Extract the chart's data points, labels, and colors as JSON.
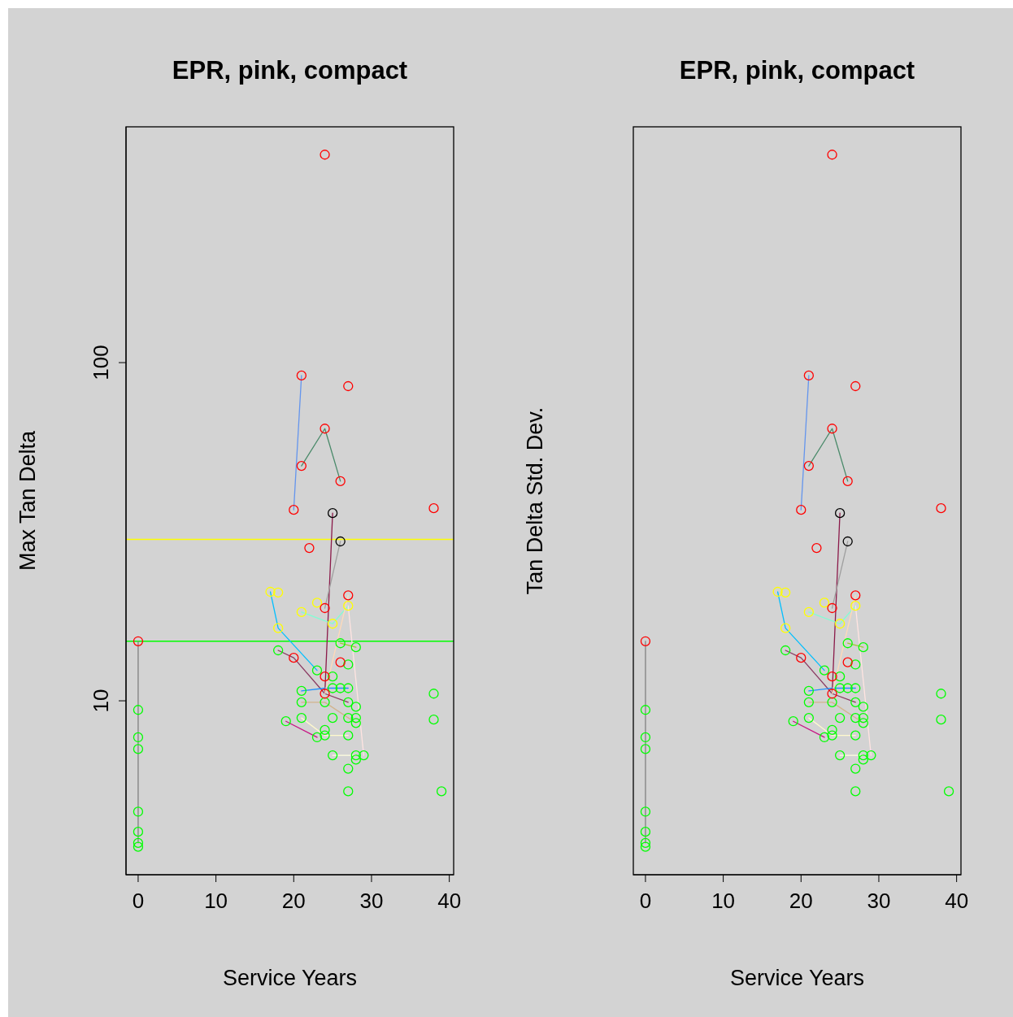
{
  "chart_data": [
    {
      "type": "scatter",
      "title": "EPR, pink, compact",
      "xlabel": "Service Years",
      "ylabel": "Max Tan Delta",
      "log": "y",
      "xlim": [
        -1.56,
        40.56
      ],
      "xticks": [
        0,
        10,
        20,
        30,
        40
      ],
      "ylim": [
        3.06,
        498
      ],
      "yticks": [
        10,
        100
      ],
      "marker": "circle",
      "ref_lines": [
        {
          "axis": "y",
          "value": 30,
          "color": "#ffff00"
        },
        {
          "axis": "y",
          "value": 15,
          "color": "#00ff00"
        }
      ],
      "series": [
        {
          "type": "line",
          "marker": "none",
          "color": "#808080",
          "x": [
            0,
            0
          ],
          "values": [
            15.0,
            3.8
          ]
        },
        {
          "type": "line",
          "marker": "none",
          "color": "#6495ed",
          "x": [
            20,
            21
          ],
          "values": [
            36.7,
            91.6
          ]
        },
        {
          "type": "line",
          "marker": "none",
          "color": "#4a8a6a",
          "x": [
            21,
            24,
            26
          ],
          "values": [
            49.5,
            63.8,
            44.6
          ]
        },
        {
          "type": "line",
          "marker": "none",
          "color": "#8b1a4a",
          "x": [
            25,
            24
          ],
          "values": [
            35.9,
            10.5
          ]
        },
        {
          "type": "line",
          "marker": "none",
          "color": "#a0a0a0",
          "x": [
            26,
            24
          ],
          "values": [
            29.6,
            18.8
          ]
        },
        {
          "type": "line",
          "marker": "none",
          "color": "#00bfff",
          "x": [
            17,
            18,
            23
          ],
          "values": [
            21.0,
            16.4,
            12.3
          ]
        },
        {
          "type": "line",
          "marker": "none",
          "color": "#7fffd4",
          "x": [
            21,
            25,
            27
          ],
          "values": [
            18.3,
            16.9,
            19.1
          ]
        },
        {
          "type": "line",
          "marker": "none",
          "color": "#8b3a62",
          "x": [
            18,
            20,
            24,
            27
          ],
          "values": [
            14.1,
            13.4,
            10.5,
            9.9
          ]
        },
        {
          "type": "line",
          "marker": "none",
          "color": "#1e90ff",
          "x": [
            21,
            24,
            27
          ],
          "values": [
            10.7,
            10.9,
            10.9
          ]
        },
        {
          "type": "line",
          "marker": "none",
          "color": "#d2b48c",
          "x": [
            21,
            24,
            28
          ],
          "values": [
            9.9,
            9.9,
            8.6
          ]
        },
        {
          "type": "line",
          "marker": "none",
          "color": "#c71585",
          "x": [
            19,
            23
          ],
          "values": [
            8.7,
            7.8
          ]
        },
        {
          "type": "line",
          "marker": "none",
          "color": "#fffacd",
          "x": [
            21,
            24,
            27
          ],
          "values": [
            8.9,
            7.9,
            7.9
          ]
        },
        {
          "type": "line",
          "marker": "none",
          "color": "#ffffe0",
          "x": [
            25,
            28
          ],
          "values": [
            6.9,
            6.9
          ]
        },
        {
          "type": "line",
          "marker": "none",
          "color": "#ffe4e1",
          "x": [
            27,
            29
          ],
          "values": [
            19.1,
            6.9
          ]
        },
        {
          "type": "line",
          "marker": "none",
          "color": "#ffdab9",
          "x": [
            27,
            24
          ],
          "values": [
            20.5,
            10.5
          ]
        },
        {
          "type": "line",
          "marker": "none",
          "color": "#9acd32",
          "x": [
            26,
            28
          ],
          "values": [
            14.8,
            14.4
          ]
        },
        {
          "type": "scatter",
          "color": "#00ff00",
          "x": [
            0,
            0,
            0,
            0,
            0,
            0,
            0,
            26,
            28,
            18,
            27,
            23,
            25,
            21,
            25,
            26,
            27,
            21,
            24,
            27,
            28,
            21,
            25,
            27,
            28,
            28,
            19,
            24,
            23,
            24,
            27,
            25,
            28,
            29,
            28,
            27,
            27,
            38,
            38,
            39
          ],
          "values": [
            9.4,
            7.8,
            7.2,
            4.7,
            4.1,
            3.8,
            3.7,
            14.8,
            14.4,
            14.1,
            12.8,
            12.3,
            11.8,
            10.7,
            10.9,
            10.9,
            10.9,
            9.9,
            9.9,
            9.9,
            9.6,
            8.9,
            8.9,
            8.9,
            8.9,
            8.6,
            8.7,
            8.2,
            7.8,
            7.9,
            7.9,
            6.9,
            6.9,
            6.9,
            6.7,
            6.3,
            5.4,
            10.5,
            8.8,
            5.4
          ]
        },
        {
          "type": "scatter",
          "color": "#ffff00",
          "x": [
            17,
            18,
            23,
            21,
            27,
            25,
            18
          ],
          "values": [
            21.0,
            20.9,
            19.5,
            18.3,
            19.1,
            16.9,
            16.4
          ]
        },
        {
          "type": "scatter",
          "color": "#ff0000",
          "x": [
            0,
            24,
            21,
            27,
            24,
            21,
            26,
            20,
            38,
            22,
            27,
            24,
            20,
            26,
            24,
            24
          ],
          "values": [
            15.0,
            412,
            91.6,
            85.2,
            63.8,
            49.5,
            44.6,
            36.7,
            37.1,
            28.3,
            20.5,
            18.8,
            13.4,
            13.0,
            11.8,
            10.5
          ]
        },
        {
          "type": "scatter",
          "color": "#000000",
          "x": [
            25,
            26
          ],
          "values": [
            35.9,
            29.6
          ]
        }
      ]
    },
    {
      "type": "scatter",
      "title": "EPR, pink, compact",
      "xlabel": "Service Years",
      "ylabel": "Tan Delta Std. Dev.",
      "log": "y",
      "xlim": [
        -1.56,
        40.56
      ],
      "xticks": [
        0,
        10,
        20,
        30,
        40
      ],
      "ylim": [
        3.06,
        498
      ],
      "tick_labels": "x",
      "marker": "circle",
      "series": [
        {
          "type": "line",
          "marker": "none",
          "color": "#808080",
          "x": [
            0,
            0
          ],
          "values": [
            15.0,
            3.8
          ]
        },
        {
          "type": "line",
          "marker": "none",
          "color": "#6495ed",
          "x": [
            20,
            21
          ],
          "values": [
            36.7,
            91.6
          ]
        },
        {
          "type": "line",
          "marker": "none",
          "color": "#4a8a6a",
          "x": [
            21,
            24,
            26
          ],
          "values": [
            49.5,
            63.8,
            44.6
          ]
        },
        {
          "type": "line",
          "marker": "none",
          "color": "#8b1a4a",
          "x": [
            25,
            24
          ],
          "values": [
            35.9,
            10.5
          ]
        },
        {
          "type": "line",
          "marker": "none",
          "color": "#a0a0a0",
          "x": [
            26,
            24
          ],
          "values": [
            29.6,
            18.8
          ]
        },
        {
          "type": "line",
          "marker": "none",
          "color": "#00bfff",
          "x": [
            17,
            18,
            23
          ],
          "values": [
            21.0,
            16.4,
            12.3
          ]
        },
        {
          "type": "line",
          "marker": "none",
          "color": "#7fffd4",
          "x": [
            21,
            25,
            27
          ],
          "values": [
            18.3,
            16.9,
            19.1
          ]
        },
        {
          "type": "line",
          "marker": "none",
          "color": "#8b3a62",
          "x": [
            18,
            20,
            24,
            27
          ],
          "values": [
            14.1,
            13.4,
            10.5,
            9.9
          ]
        },
        {
          "type": "line",
          "marker": "none",
          "color": "#1e90ff",
          "x": [
            21,
            24,
            27
          ],
          "values": [
            10.7,
            10.9,
            10.9
          ]
        },
        {
          "type": "line",
          "marker": "none",
          "color": "#d2b48c",
          "x": [
            21,
            24,
            28
          ],
          "values": [
            9.9,
            9.9,
            8.6
          ]
        },
        {
          "type": "line",
          "marker": "none",
          "color": "#c71585",
          "x": [
            19,
            23
          ],
          "values": [
            8.7,
            7.8
          ]
        },
        {
          "type": "line",
          "marker": "none",
          "color": "#fffacd",
          "x": [
            21,
            24,
            27
          ],
          "values": [
            8.9,
            7.9,
            7.9
          ]
        },
        {
          "type": "line",
          "marker": "none",
          "color": "#ffffe0",
          "x": [
            25,
            28
          ],
          "values": [
            6.9,
            6.9
          ]
        },
        {
          "type": "line",
          "marker": "none",
          "color": "#ffe4e1",
          "x": [
            27,
            29
          ],
          "values": [
            19.1,
            6.9
          ]
        },
        {
          "type": "line",
          "marker": "none",
          "color": "#ffdab9",
          "x": [
            27,
            24
          ],
          "values": [
            20.5,
            10.5
          ]
        },
        {
          "type": "line",
          "marker": "none",
          "color": "#9acd32",
          "x": [
            26,
            28
          ],
          "values": [
            14.8,
            14.4
          ]
        },
        {
          "type": "scatter",
          "color": "#00ff00",
          "x": [
            0,
            0,
            0,
            0,
            0,
            0,
            0,
            26,
            28,
            18,
            27,
            23,
            25,
            21,
            25,
            26,
            27,
            21,
            24,
            27,
            28,
            21,
            25,
            27,
            28,
            28,
            19,
            24,
            23,
            24,
            27,
            25,
            28,
            29,
            28,
            27,
            27,
            38,
            38,
            39
          ],
          "values": [
            9.4,
            7.8,
            7.2,
            4.7,
            4.1,
            3.8,
            3.7,
            14.8,
            14.4,
            14.1,
            12.8,
            12.3,
            11.8,
            10.7,
            10.9,
            10.9,
            10.9,
            9.9,
            9.9,
            9.9,
            9.6,
            8.9,
            8.9,
            8.9,
            8.9,
            8.6,
            8.7,
            8.2,
            7.8,
            7.9,
            7.9,
            6.9,
            6.9,
            6.9,
            6.7,
            6.3,
            5.4,
            10.5,
            8.8,
            5.4
          ]
        },
        {
          "type": "scatter",
          "color": "#ffff00",
          "x": [
            17,
            18,
            23,
            21,
            27,
            25,
            18
          ],
          "values": [
            21.0,
            20.9,
            19.5,
            18.3,
            19.1,
            16.9,
            16.4
          ]
        },
        {
          "type": "scatter",
          "color": "#ff0000",
          "x": [
            0,
            24,
            21,
            27,
            24,
            21,
            26,
            20,
            38,
            22,
            27,
            24,
            20,
            26,
            24,
            24
          ],
          "values": [
            15.0,
            412,
            91.6,
            85.2,
            63.8,
            49.5,
            44.6,
            36.7,
            37.1,
            28.3,
            20.5,
            18.8,
            13.4,
            13.0,
            11.8,
            10.5
          ]
        },
        {
          "type": "scatter",
          "color": "#000000",
          "x": [
            25,
            26
          ],
          "values": [
            35.9,
            29.6
          ]
        }
      ]
    }
  ]
}
